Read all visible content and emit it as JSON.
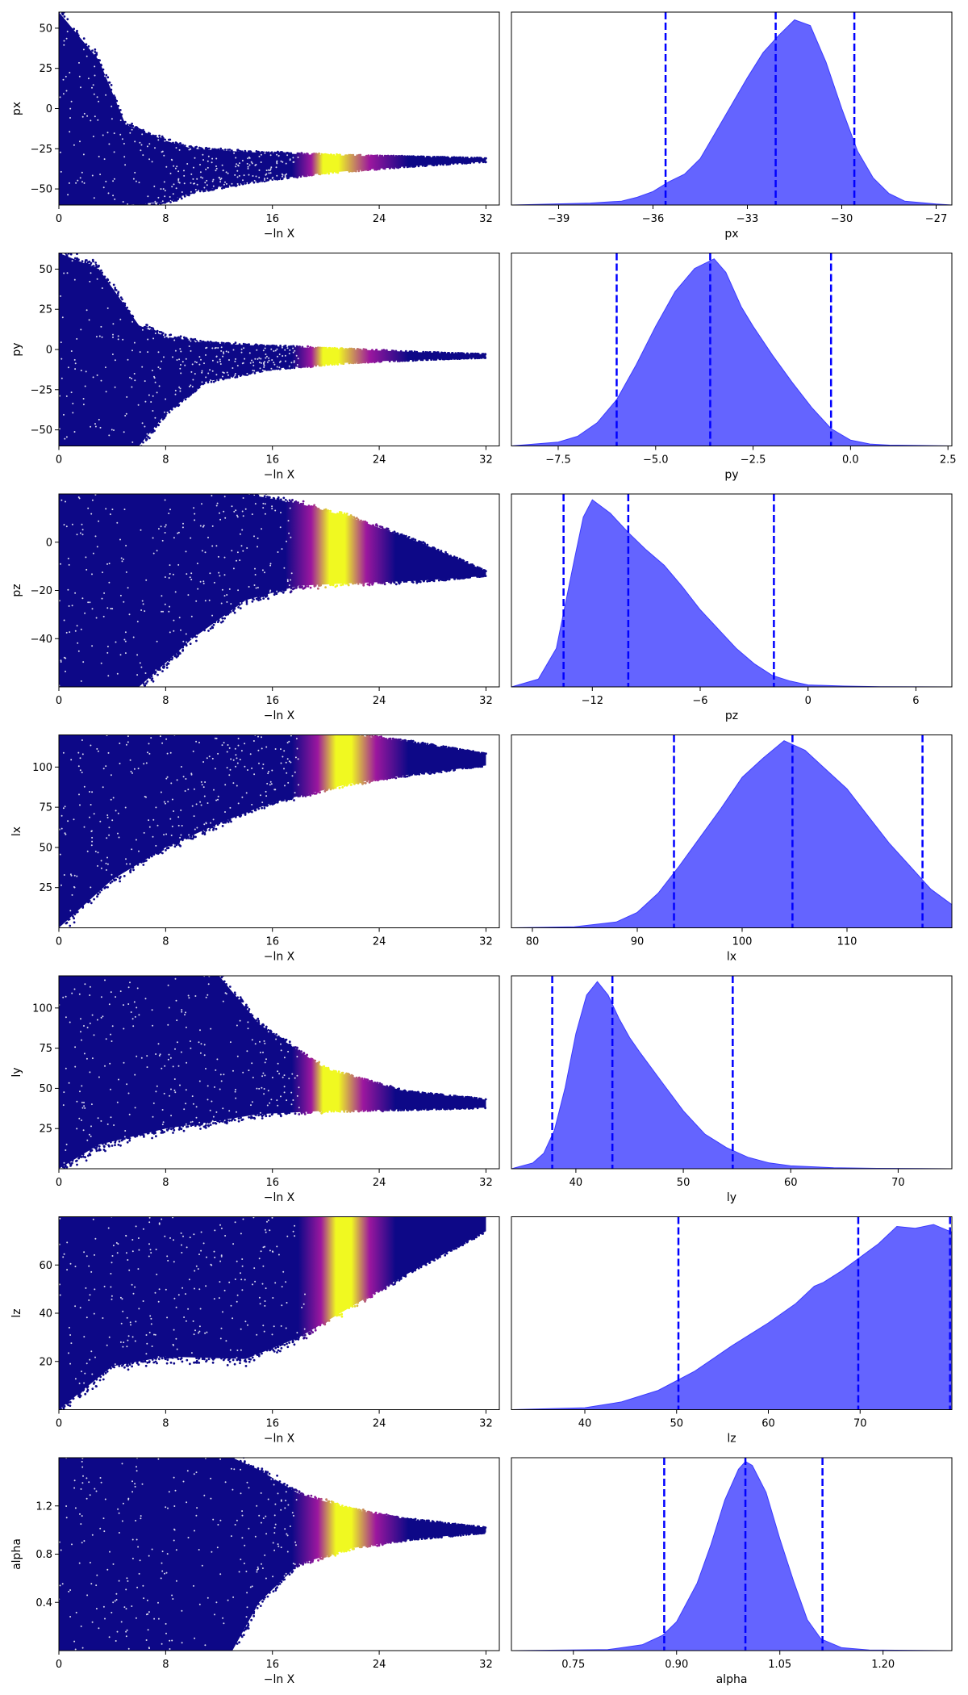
{
  "colors": {
    "trace_low": "#0d0887",
    "trace_mid": "#9c179e",
    "trace_high": "#f0f921",
    "posterior_fill": "#6464ff",
    "posterior_edge": "#3b3bff",
    "quantile_line": "#0000ff"
  },
  "chart_data": [
    {
      "type": "scatter",
      "param": "px",
      "xlabel": "−ln X",
      "ylabel": "px",
      "xlim": [
        0,
        33
      ],
      "ylim": [
        -60,
        60
      ],
      "xticks": [
        0,
        8,
        16,
        24,
        32
      ],
      "xtick_labels": [
        "0",
        "8",
        "16",
        "24",
        "32"
      ],
      "yticks": [
        -50,
        -25,
        0,
        25,
        50
      ],
      "ytick_labels": [
        "−50",
        "−25",
        "0",
        "25",
        "50"
      ],
      "envelope": [
        {
          "x": 0,
          "lo": -60,
          "hi": 60
        },
        {
          "x": 3,
          "lo": -60,
          "hi": 30
        },
        {
          "x": 5,
          "lo": -60,
          "hi": -10
        },
        {
          "x": 8,
          "lo": -58,
          "hi": -20
        },
        {
          "x": 10,
          "lo": -52,
          "hi": -25
        },
        {
          "x": 14,
          "lo": -46,
          "hi": -27
        },
        {
          "x": 20,
          "lo": -40,
          "hi": -29
        },
        {
          "x": 26,
          "lo": -36,
          "hi": -30
        },
        {
          "x": 32,
          "lo": -33,
          "hi": -31
        }
      ],
      "colorband": {
        "start": 18,
        "peak": 21,
        "end": 27
      }
    },
    {
      "type": "area",
      "param": "px",
      "xlabel": "px",
      "xlim": [
        -40.5,
        -26.5
      ],
      "xticks": [
        -39,
        -36,
        -33,
        -30,
        -27
      ],
      "xtick_labels": [
        "−39",
        "−36",
        "−33",
        "−30",
        "−27"
      ],
      "x": [
        -40.5,
        -38,
        -37,
        -36.5,
        -36,
        -35.5,
        -35,
        -34.5,
        -34,
        -33.5,
        -33,
        -32.5,
        -32,
        -31.5,
        -31,
        -30.5,
        -30,
        -29.5,
        -29,
        -28.5,
        -28,
        -27,
        -26.5
      ],
      "y": [
        0,
        0.01,
        0.02,
        0.04,
        0.07,
        0.12,
        0.16,
        0.24,
        0.38,
        0.52,
        0.66,
        0.79,
        0.88,
        0.96,
        0.93,
        0.74,
        0.5,
        0.28,
        0.14,
        0.06,
        0.02,
        0.005,
        0
      ],
      "quantiles": [
        -35.6,
        -32.1,
        -29.6
      ]
    },
    {
      "type": "scatter",
      "param": "py",
      "xlabel": "−ln X",
      "ylabel": "py",
      "xlim": [
        0,
        33
      ],
      "ylim": [
        -60,
        60
      ],
      "xticks": [
        0,
        8,
        16,
        24,
        32
      ],
      "xtick_labels": [
        "0",
        "8",
        "16",
        "24",
        "32"
      ],
      "yticks": [
        -50,
        -25,
        0,
        25,
        50
      ],
      "ytick_labels": [
        "−50",
        "−25",
        "0",
        "25",
        "50"
      ],
      "envelope": [
        {
          "x": 0,
          "lo": -60,
          "hi": 60
        },
        {
          "x": 3,
          "lo": -60,
          "hi": 50
        },
        {
          "x": 6,
          "lo": -60,
          "hi": 15
        },
        {
          "x": 8,
          "lo": -40,
          "hi": 8
        },
        {
          "x": 11,
          "lo": -20,
          "hi": 4
        },
        {
          "x": 16,
          "lo": -12,
          "hi": 2
        },
        {
          "x": 22,
          "lo": -8,
          "hi": 0
        },
        {
          "x": 28,
          "lo": -6,
          "hi": -2
        },
        {
          "x": 32,
          "lo": -5,
          "hi": -3
        }
      ],
      "colorband": {
        "start": 18,
        "peak": 21,
        "end": 27
      }
    },
    {
      "type": "area",
      "param": "py",
      "xlabel": "py",
      "xlim": [
        -8.7,
        2.6
      ],
      "xticks": [
        -7.5,
        -5.0,
        -2.5,
        0.0,
        2.5
      ],
      "xtick_labels": [
        "−7.5",
        "−5.0",
        "−2.5",
        "0.0",
        "2.5"
      ],
      "x": [
        -8.7,
        -7.5,
        -7.0,
        -6.5,
        -6.0,
        -5.5,
        -5.0,
        -4.5,
        -4.0,
        -3.5,
        -3.2,
        -2.8,
        -2.5,
        -2.0,
        -1.5,
        -1.0,
        -0.5,
        0.0,
        0.5,
        1.0,
        2.6
      ],
      "y": [
        0,
        0.02,
        0.05,
        0.12,
        0.24,
        0.42,
        0.62,
        0.8,
        0.92,
        0.97,
        0.9,
        0.72,
        0.62,
        0.47,
        0.33,
        0.2,
        0.09,
        0.03,
        0.01,
        0.004,
        0
      ],
      "quantiles": [
        -6.0,
        -3.6,
        -0.5
      ]
    },
    {
      "type": "scatter",
      "param": "pz",
      "xlabel": "−ln X",
      "ylabel": "pz",
      "xlim": [
        0,
        33
      ],
      "ylim": [
        -60,
        20
      ],
      "xticks": [
        0,
        8,
        16,
        24,
        32
      ],
      "xtick_labels": [
        "0",
        "8",
        "16",
        "24",
        "32"
      ],
      "yticks": [
        -40,
        -20,
        0
      ],
      "ytick_labels": [
        "−40",
        "−20",
        "0"
      ],
      "envelope": [
        {
          "x": 0,
          "lo": -60,
          "hi": 20
        },
        {
          "x": 6,
          "lo": -60,
          "hi": 20
        },
        {
          "x": 10,
          "lo": -40,
          "hi": 20
        },
        {
          "x": 14,
          "lo": -24,
          "hi": 20
        },
        {
          "x": 18,
          "lo": -18,
          "hi": 16
        },
        {
          "x": 22,
          "lo": -17,
          "hi": 10
        },
        {
          "x": 27,
          "lo": -16,
          "hi": 0
        },
        {
          "x": 32,
          "lo": -14,
          "hi": -12
        }
      ],
      "colorband": {
        "start": 17.5,
        "peak": 21.5,
        "end": 26
      }
    },
    {
      "type": "area",
      "param": "pz",
      "xlabel": "pz",
      "xlim": [
        -16.5,
        8
      ],
      "xticks": [
        -12,
        -6,
        0,
        6
      ],
      "xtick_labels": [
        "−12",
        "−6",
        "0",
        "6"
      ],
      "x": [
        -16.5,
        -15,
        -14,
        -13,
        -12.5,
        -12,
        -11,
        -10,
        -9,
        -8,
        -7,
        -6,
        -5,
        -4,
        -3,
        -2,
        -1,
        0,
        2,
        4,
        8
      ],
      "y": [
        0,
        0.04,
        0.2,
        0.66,
        0.88,
        0.97,
        0.9,
        0.8,
        0.71,
        0.63,
        0.52,
        0.4,
        0.3,
        0.2,
        0.12,
        0.06,
        0.03,
        0.01,
        0.004,
        0.001,
        0
      ],
      "quantiles": [
        -13.6,
        -10.0,
        -1.9
      ]
    },
    {
      "type": "scatter",
      "param": "lx",
      "xlabel": "−ln X",
      "ylabel": "lx",
      "xlim": [
        0,
        33
      ],
      "ylim": [
        0,
        120
      ],
      "xticks": [
        0,
        8,
        16,
        24,
        32
      ],
      "xtick_labels": [
        "0",
        "8",
        "16",
        "24",
        "32"
      ],
      "yticks": [
        25,
        50,
        75,
        100
      ],
      "ytick_labels": [
        "25",
        "50",
        "75",
        "100"
      ],
      "envelope": [
        {
          "x": 0,
          "lo": 0,
          "hi": 120
        },
        {
          "x": 4,
          "lo": 30,
          "hi": 120
        },
        {
          "x": 8,
          "lo": 50,
          "hi": 120
        },
        {
          "x": 12,
          "lo": 65,
          "hi": 120
        },
        {
          "x": 16,
          "lo": 78,
          "hi": 120
        },
        {
          "x": 22,
          "lo": 90,
          "hi": 120
        },
        {
          "x": 26,
          "lo": 95,
          "hi": 116
        },
        {
          "x": 32,
          "lo": 101,
          "hi": 108
        }
      ],
      "colorband": {
        "start": 18,
        "peak": 22,
        "end": 27
      }
    },
    {
      "type": "area",
      "param": "lx",
      "xlabel": "lx",
      "xlim": [
        78,
        120
      ],
      "xticks": [
        80,
        90,
        100,
        110
      ],
      "xtick_labels": [
        "80",
        "90",
        "100",
        "110"
      ],
      "x": [
        78,
        84,
        88,
        90,
        92,
        94,
        96,
        98,
        100,
        102,
        104,
        106,
        108,
        110,
        112,
        114,
        116,
        118,
        120
      ],
      "y": [
        0,
        0.005,
        0.03,
        0.08,
        0.18,
        0.32,
        0.47,
        0.62,
        0.78,
        0.88,
        0.97,
        0.92,
        0.82,
        0.72,
        0.58,
        0.44,
        0.32,
        0.2,
        0.12
      ],
      "quantiles": [
        93.5,
        104.8,
        117.2
      ]
    },
    {
      "type": "scatter",
      "param": "ly",
      "xlabel": "−ln X",
      "ylabel": "ly",
      "xlim": [
        0,
        33
      ],
      "ylim": [
        0,
        120
      ],
      "xticks": [
        0,
        8,
        16,
        24,
        32
      ],
      "xtick_labels": [
        "0",
        "8",
        "16",
        "24",
        "32"
      ],
      "yticks": [
        25,
        50,
        75,
        100
      ],
      "ytick_labels": [
        "25",
        "50",
        "75",
        "100"
      ],
      "envelope": [
        {
          "x": 0,
          "lo": 0,
          "hi": 120
        },
        {
          "x": 3,
          "lo": 15,
          "hi": 120
        },
        {
          "x": 8,
          "lo": 25,
          "hi": 120
        },
        {
          "x": 12,
          "lo": 30,
          "hi": 120
        },
        {
          "x": 15,
          "lo": 34,
          "hi": 90
        },
        {
          "x": 20,
          "lo": 36,
          "hi": 62
        },
        {
          "x": 26,
          "lo": 37,
          "hi": 48
        },
        {
          "x": 32,
          "lo": 38,
          "hi": 43
        }
      ],
      "colorband": {
        "start": 18,
        "peak": 21,
        "end": 26
      }
    },
    {
      "type": "area",
      "param": "ly",
      "xlabel": "ly",
      "xlim": [
        34,
        75
      ],
      "xticks": [
        40,
        50,
        60,
        70
      ],
      "xtick_labels": [
        "40",
        "50",
        "60",
        "70"
      ],
      "x": [
        34,
        36,
        37,
        38,
        39,
        40,
        41,
        42,
        43,
        44,
        45,
        46,
        48,
        50,
        52,
        54,
        56,
        58,
        60,
        64,
        68,
        75
      ],
      "y": [
        0,
        0.03,
        0.08,
        0.2,
        0.42,
        0.7,
        0.9,
        0.97,
        0.9,
        0.78,
        0.68,
        0.6,
        0.45,
        0.3,
        0.18,
        0.11,
        0.06,
        0.03,
        0.015,
        0.005,
        0.002,
        0
      ],
      "quantiles": [
        37.8,
        43.4,
        54.6
      ]
    },
    {
      "type": "scatter",
      "param": "lz",
      "xlabel": "−ln X",
      "ylabel": "lz",
      "xlim": [
        0,
        33
      ],
      "ylim": [
        0,
        80
      ],
      "xticks": [
        0,
        8,
        16,
        24,
        32
      ],
      "xtick_labels": [
        "0",
        "8",
        "16",
        "24",
        "32"
      ],
      "yticks": [
        20,
        40,
        60
      ],
      "ytick_labels": [
        "20",
        "40",
        "60"
      ],
      "envelope": [
        {
          "x": 0,
          "lo": 0,
          "hi": 80
        },
        {
          "x": 4,
          "lo": 18,
          "hi": 80
        },
        {
          "x": 8,
          "lo": 22,
          "hi": 80
        },
        {
          "x": 14,
          "lo": 21,
          "hi": 80
        },
        {
          "x": 18,
          "lo": 30,
          "hi": 80
        },
        {
          "x": 22,
          "lo": 43,
          "hi": 80
        },
        {
          "x": 26,
          "lo": 56,
          "hi": 80
        },
        {
          "x": 32,
          "lo": 74,
          "hi": 80
        }
      ],
      "colorband": {
        "start": 18.5,
        "peak": 22,
        "end": 26
      }
    },
    {
      "type": "area",
      "param": "lz",
      "xlabel": "lz",
      "xlim": [
        32,
        80
      ],
      "xticks": [
        40,
        50,
        60,
        70
      ],
      "xtick_labels": [
        "40",
        "50",
        "60",
        "70"
      ],
      "x": [
        32,
        40,
        44,
        48,
        52,
        56,
        60,
        63,
        65,
        66,
        68,
        70,
        72,
        74,
        76,
        78,
        79.5,
        80
      ],
      "y": [
        0,
        0.01,
        0.04,
        0.1,
        0.2,
        0.33,
        0.45,
        0.55,
        0.64,
        0.66,
        0.72,
        0.79,
        0.86,
        0.95,
        0.94,
        0.96,
        0.93,
        0.92
      ],
      "quantiles": [
        50.2,
        69.8,
        79.8
      ]
    },
    {
      "type": "scatter",
      "param": "alpha",
      "xlabel": "−ln X",
      "ylabel": "alpha",
      "xlim": [
        0,
        33
      ],
      "ylim": [
        0,
        1.6
      ],
      "xticks": [
        0,
        8,
        16,
        24,
        32
      ],
      "xtick_labels": [
        "0",
        "8",
        "16",
        "24",
        "32"
      ],
      "yticks": [
        0.4,
        0.8,
        1.2
      ],
      "ytick_labels": [
        "0.4",
        "0.8",
        "1.2"
      ],
      "envelope": [
        {
          "x": 0,
          "lo": 0,
          "hi": 1.6
        },
        {
          "x": 13,
          "lo": 0,
          "hi": 1.6
        },
        {
          "x": 15,
          "lo": 0.4,
          "hi": 1.5
        },
        {
          "x": 18,
          "lo": 0.72,
          "hi": 1.3
        },
        {
          "x": 22,
          "lo": 0.85,
          "hi": 1.17
        },
        {
          "x": 26,
          "lo": 0.92,
          "hi": 1.09
        },
        {
          "x": 32,
          "lo": 0.98,
          "hi": 1.02
        }
      ],
      "colorband": {
        "start": 18,
        "peak": 22,
        "end": 27
      }
    },
    {
      "type": "area",
      "param": "alpha",
      "xlabel": "alpha",
      "xlim": [
        0.66,
        1.3
      ],
      "xticks": [
        0.75,
        0.9,
        1.05,
        1.2
      ],
      "xtick_labels": [
        "0.75",
        "0.90",
        "1.05",
        "1.20"
      ],
      "x": [
        0.66,
        0.8,
        0.85,
        0.88,
        0.9,
        0.93,
        0.95,
        0.97,
        0.99,
        1.0,
        1.01,
        1.03,
        1.05,
        1.07,
        1.09,
        1.11,
        1.14,
        1.18,
        1.3
      ],
      "y": [
        0,
        0.005,
        0.03,
        0.08,
        0.15,
        0.35,
        0.55,
        0.78,
        0.94,
        0.98,
        0.96,
        0.82,
        0.58,
        0.36,
        0.16,
        0.06,
        0.015,
        0.003,
        0
      ],
      "quantiles": [
        0.882,
        1.0,
        1.112
      ]
    }
  ]
}
